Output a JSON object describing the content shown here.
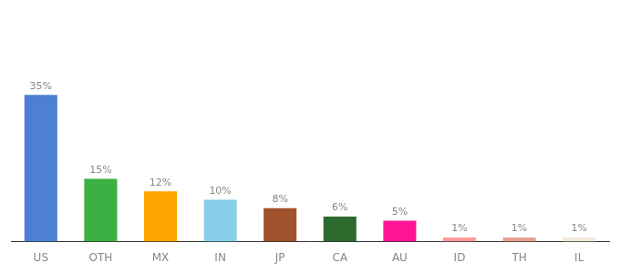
{
  "chart_data": {
    "type": "bar",
    "categories": [
      "US",
      "OTH",
      "MX",
      "IN",
      "JP",
      "CA",
      "AU",
      "ID",
      "TH",
      "IL"
    ],
    "values": [
      35,
      15,
      12,
      10,
      8,
      6,
      5,
      1,
      1,
      1
    ],
    "value_labels": [
      "35%",
      "15%",
      "12%",
      "10%",
      "8%",
      "6%",
      "5%",
      "1%",
      "1%",
      "1%"
    ],
    "data_labels": true,
    "colors": [
      "#4d7fd4",
      "#3cb043",
      "#ffa500",
      "#87ceeb",
      "#a0522d",
      "#2d6a2d",
      "#ff1493",
      "#ff9999",
      "#e8a090",
      "#f0ead6"
    ],
    "ylim": [
      0,
      55
    ],
    "grid": false,
    "tick_labels": "x"
  }
}
